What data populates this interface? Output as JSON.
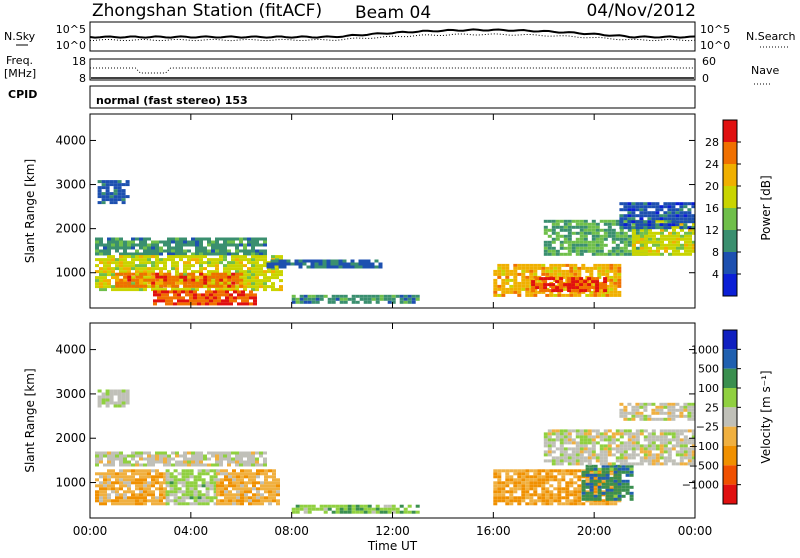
{
  "header": {
    "title": "Zhongshan Station (fitACF)",
    "beam": "Beam 04",
    "date": "04/Nov/2012"
  },
  "side_labels": {
    "nsky": "N.Sky",
    "freq_line1": "Freq.",
    "freq_line2": "[MHz]",
    "cpid": "CPID",
    "nsearch": "N.Search",
    "nave": "Nave"
  },
  "panel_ticks": {
    "nsky_left_top": "10^5",
    "nsky_left_bottom": "10^0",
    "nsky_right_top": "10^5",
    "nsky_right_bottom": "10^0",
    "freq_left_top": "18",
    "freq_left_bottom": "8",
    "nave_right_top": "60",
    "nave_right_bottom": "0"
  },
  "cpid_text": "normal (fast stereo) 153",
  "colors": {
    "power_scale": [
      "#0b1fd6",
      "#1d50b0",
      "#3a8f6f",
      "#6fbf4a",
      "#c9d400",
      "#f0b000",
      "#f07000",
      "#e01010"
    ],
    "velocity_scale": [
      "#e01010",
      "#f05000",
      "#f09000",
      "#f0b040",
      "#c0c0b8",
      "#90d040",
      "#3a8f4f",
      "#2060b0",
      "#1020c0"
    ]
  },
  "chart_data": [
    {
      "type": "heatmap",
      "name": "power",
      "ylabel": "Slant Range [km]",
      "yticks": [
        "1000",
        "2000",
        "3000",
        "4000"
      ],
      "ylim": [
        200,
        4600
      ],
      "colorbar_label": "Power [dB]",
      "colorbar_ticks": [
        "4",
        "8",
        "12",
        "16",
        "20",
        "24",
        "28"
      ],
      "colorbar_range": [
        0,
        32
      ],
      "regions": [
        {
          "x0": 0.3,
          "x1": 1.5,
          "y0": 2600,
          "y1": 3100,
          "v": 6
        },
        {
          "x0": 0.2,
          "x1": 7.0,
          "y0": 1400,
          "y1": 1800,
          "v": 10
        },
        {
          "x0": 0.2,
          "x1": 7.5,
          "y0": 600,
          "y1": 1400,
          "v": 18
        },
        {
          "x0": 1.0,
          "x1": 6.0,
          "y0": 700,
          "y1": 1000,
          "v": 26
        },
        {
          "x0": 2.5,
          "x1": 6.5,
          "y0": 300,
          "y1": 600,
          "v": 28
        },
        {
          "x0": 7.0,
          "x1": 11.5,
          "y0": 1100,
          "y1": 1300,
          "v": 7
        },
        {
          "x0": 8.0,
          "x1": 13.0,
          "y0": 300,
          "y1": 500,
          "v": 10
        },
        {
          "x0": 16.0,
          "x1": 21.0,
          "y0": 500,
          "y1": 1200,
          "v": 22
        },
        {
          "x0": 17.5,
          "x1": 20.5,
          "y0": 600,
          "y1": 900,
          "v": 28
        },
        {
          "x0": 18.0,
          "x1": 22.0,
          "y0": 1400,
          "y1": 2200,
          "v": 12
        },
        {
          "x0": 21.5,
          "x1": 24.0,
          "y0": 1400,
          "y1": 2200,
          "v": 18
        },
        {
          "x0": 21.0,
          "x1": 24.0,
          "y0": 2000,
          "y1": 2600,
          "v": 6
        }
      ]
    },
    {
      "type": "heatmap",
      "name": "velocity",
      "ylabel": "Slant Range [km]",
      "yticks": [
        "1000",
        "2000",
        "3000",
        "4000"
      ],
      "ylim": [
        200,
        4600
      ],
      "colorbar_label": "Velocity [m s⁻¹]",
      "colorbar_ticks": [
        "1000",
        "500",
        "100",
        "25",
        "−25",
        "−100",
        "−500",
        "−1000"
      ],
      "colorbar_range": [
        -1200,
        1200
      ],
      "regions": [
        {
          "x0": 0.3,
          "x1": 1.5,
          "y0": 2700,
          "y1": 3100,
          "v": 0
        },
        {
          "x0": 0.2,
          "x1": 7.0,
          "y0": 1400,
          "y1": 1700,
          "v": 0
        },
        {
          "x0": 0.2,
          "x1": 3.0,
          "y0": 500,
          "y1": 1300,
          "v": -300
        },
        {
          "x0": 3.0,
          "x1": 5.0,
          "y0": 500,
          "y1": 1300,
          "v": 200
        },
        {
          "x0": 5.0,
          "x1": 7.5,
          "y0": 500,
          "y1": 1300,
          "v": -300
        },
        {
          "x0": 8.0,
          "x1": 13.0,
          "y0": 300,
          "y1": 500,
          "v": 300
        },
        {
          "x0": 16.0,
          "x1": 21.0,
          "y0": 500,
          "y1": 1300,
          "v": -400
        },
        {
          "x0": 19.5,
          "x1": 21.5,
          "y0": 600,
          "y1": 1400,
          "v": 600
        },
        {
          "x0": 18.0,
          "x1": 24.0,
          "y0": 1400,
          "y1": 2200,
          "v": 0
        },
        {
          "x0": 21.0,
          "x1": 24.0,
          "y0": 2400,
          "y1": 2800,
          "v": 0
        }
      ]
    }
  ],
  "x_axis": {
    "label": "Time UT",
    "ticks": [
      "00:00",
      "04:00",
      "08:00",
      "12:00",
      "16:00",
      "20:00",
      "00:00"
    ],
    "range": [
      0,
      24
    ]
  }
}
